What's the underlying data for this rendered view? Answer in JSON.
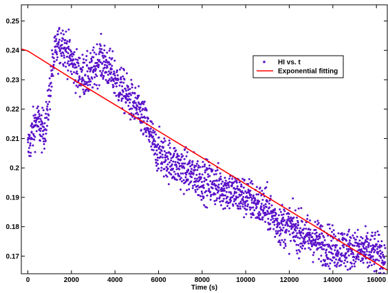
{
  "chart_data": {
    "type": "scatter",
    "title": "",
    "xlabel": "Time (s)",
    "ylabel": "",
    "xlim": [
      -300,
      16500
    ],
    "ylim": [
      0.164,
      0.2555
    ],
    "xticks": [
      0,
      2000,
      4000,
      6000,
      8000,
      10000,
      12000,
      14000,
      16000
    ],
    "yticks": [
      0.17,
      0.18,
      0.19,
      0.2,
      0.21,
      0.22,
      0.23,
      0.24,
      0.25
    ],
    "grid": false,
    "legend_position": "top-right",
    "colors": {
      "scatter": "#5b12c9",
      "fit": "#ff0000"
    },
    "series": [
      {
        "name": "HI vs. t",
        "kind": "scatter",
        "trend_points": [
          {
            "x": 0,
            "y": 0.206
          },
          {
            "x": 200,
            "y": 0.212
          },
          {
            "x": 400,
            "y": 0.216
          },
          {
            "x": 700,
            "y": 0.212
          },
          {
            "x": 900,
            "y": 0.218
          },
          {
            "x": 1100,
            "y": 0.233
          },
          {
            "x": 1300,
            "y": 0.24
          },
          {
            "x": 1600,
            "y": 0.243
          },
          {
            "x": 1900,
            "y": 0.238
          },
          {
            "x": 2300,
            "y": 0.232
          },
          {
            "x": 2800,
            "y": 0.231
          },
          {
            "x": 3300,
            "y": 0.237
          },
          {
            "x": 3700,
            "y": 0.234
          },
          {
            "x": 4200,
            "y": 0.228
          },
          {
            "x": 4700,
            "y": 0.223
          },
          {
            "x": 5200,
            "y": 0.218
          },
          {
            "x": 5600,
            "y": 0.212
          },
          {
            "x": 5800,
            "y": 0.207
          },
          {
            "x": 6200,
            "y": 0.204
          },
          {
            "x": 7000,
            "y": 0.2
          },
          {
            "x": 8000,
            "y": 0.196
          },
          {
            "x": 9000,
            "y": 0.193
          },
          {
            "x": 10000,
            "y": 0.19
          },
          {
            "x": 11000,
            "y": 0.186
          },
          {
            "x": 11500,
            "y": 0.181
          },
          {
            "x": 12000,
            "y": 0.18
          },
          {
            "x": 13000,
            "y": 0.176
          },
          {
            "x": 14000,
            "y": 0.173
          },
          {
            "x": 15000,
            "y": 0.172
          },
          {
            "x": 16000,
            "y": 0.171
          },
          {
            "x": 16400,
            "y": 0.169
          }
        ],
        "points_per_unit": 1200,
        "noise": 0.0035
      },
      {
        "name": "Exponential fitting",
        "kind": "line",
        "x": [
          -300,
          0,
          2000,
          4000,
          6000,
          8000,
          10000,
          12000,
          14000,
          16000,
          16500
        ],
        "y": [
          0.2405,
          0.2398,
          0.2305,
          0.2215,
          0.2125,
          0.2035,
          0.1945,
          0.1855,
          0.1765,
          0.1675,
          0.1652
        ]
      }
    ]
  }
}
